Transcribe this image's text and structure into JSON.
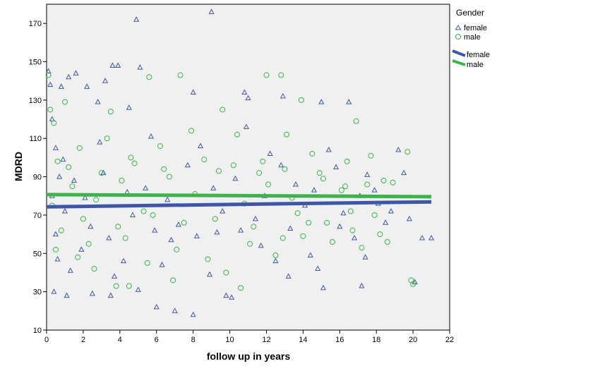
{
  "chart_data": {
    "type": "scatter",
    "xlabel": "follow up in years",
    "ylabel": "MDRD",
    "xlim": [
      0,
      22
    ],
    "ylim": [
      10,
      180
    ],
    "xticks": [
      0,
      2,
      4,
      6,
      8,
      10,
      12,
      14,
      16,
      18,
      20,
      22
    ],
    "yticks": [
      10,
      30,
      50,
      70,
      90,
      110,
      130,
      150,
      170
    ],
    "grid": false,
    "legend_title": "Gender",
    "legend_placement": "right",
    "colors": {
      "female": "#3f56a6",
      "male": "#3cb44b",
      "plot_bg": "#f0f0f0"
    },
    "series": [
      {
        "name": "female",
        "marker": "triangle",
        "points": [
          [
            0.1,
            145
          ],
          [
            0.2,
            138
          ],
          [
            0.3,
            120
          ],
          [
            0.5,
            105
          ],
          [
            0.8,
            137
          ],
          [
            1.2,
            142
          ],
          [
            1.6,
            144
          ],
          [
            2.2,
            137
          ],
          [
            2.8,
            129
          ],
          [
            3.2,
            140
          ],
          [
            3.6,
            148
          ],
          [
            3.9,
            148
          ],
          [
            4.5,
            126
          ],
          [
            4.9,
            172
          ],
          [
            5.1,
            147
          ],
          [
            8.0,
            134
          ],
          [
            9.0,
            176
          ],
          [
            10.8,
            134
          ],
          [
            11.0,
            131
          ],
          [
            12.9,
            132
          ],
          [
            15.0,
            129
          ],
          [
            16.5,
            129
          ],
          [
            19.2,
            104
          ],
          [
            0.4,
            30
          ],
          [
            1.1,
            28
          ],
          [
            2.5,
            29
          ],
          [
            3.5,
            28
          ],
          [
            5.0,
            31
          ],
          [
            6.0,
            22
          ],
          [
            7.0,
            20
          ],
          [
            8.0,
            18
          ],
          [
            9.8,
            28
          ],
          [
            10.1,
            27
          ],
          [
            13.2,
            38
          ],
          [
            15.1,
            32
          ],
          [
            17.2,
            33
          ],
          [
            20.1,
            35
          ],
          [
            0.6,
            47
          ],
          [
            1.9,
            52
          ],
          [
            4.2,
            46
          ],
          [
            6.8,
            57
          ],
          [
            9.3,
            61
          ],
          [
            11.7,
            54
          ],
          [
            14.4,
            49
          ],
          [
            16.8,
            58
          ],
          [
            18.5,
            66
          ],
          [
            20.5,
            58
          ],
          [
            1.5,
            88
          ],
          [
            3.1,
            92
          ],
          [
            5.4,
            84
          ],
          [
            7.7,
            96
          ],
          [
            10.3,
            89
          ],
          [
            12.2,
            102
          ],
          [
            13.6,
            86
          ],
          [
            15.8,
            95
          ],
          [
            17.5,
            91
          ],
          [
            19.5,
            92
          ],
          [
            2.4,
            64
          ],
          [
            4.7,
            70
          ],
          [
            7.2,
            65
          ],
          [
            9.6,
            72
          ],
          [
            11.4,
            68
          ],
          [
            14.1,
            75
          ],
          [
            16.2,
            71
          ],
          [
            18.1,
            76
          ],
          [
            19.8,
            68
          ],
          [
            0.9,
            99
          ],
          [
            2.9,
            108
          ],
          [
            5.7,
            111
          ],
          [
            8.4,
            106
          ],
          [
            10.9,
            116
          ],
          [
            12.8,
            96
          ],
          [
            15.4,
            104
          ],
          [
            17.9,
            83
          ],
          [
            1.3,
            41
          ],
          [
            3.7,
            38
          ],
          [
            6.3,
            44
          ],
          [
            8.9,
            39
          ],
          [
            12.5,
            46
          ],
          [
            14.8,
            42
          ],
          [
            17.4,
            48
          ],
          [
            0.3,
            80
          ],
          [
            0.5,
            60
          ],
          [
            0.7,
            90
          ],
          [
            1.0,
            72
          ],
          [
            2.1,
            79
          ],
          [
            3.4,
            58
          ],
          [
            4.4,
            82
          ],
          [
            5.9,
            62
          ],
          [
            6.6,
            78
          ],
          [
            8.2,
            59
          ],
          [
            9.1,
            84
          ],
          [
            10.6,
            62
          ],
          [
            11.9,
            80
          ],
          [
            13.3,
            63
          ],
          [
            14.6,
            83
          ],
          [
            16.0,
            64
          ],
          [
            17.1,
            80
          ],
          [
            18.8,
            72
          ],
          [
            21.0,
            58
          ]
        ]
      },
      {
        "name": "male",
        "marker": "circle",
        "points": [
          [
            0.1,
            143
          ],
          [
            0.2,
            125
          ],
          [
            0.4,
            118
          ],
          [
            1.0,
            129
          ],
          [
            3.5,
            124
          ],
          [
            5.6,
            142
          ],
          [
            7.3,
            143
          ],
          [
            9.6,
            125
          ],
          [
            12.0,
            143
          ],
          [
            12.8,
            143
          ],
          [
            13.9,
            130
          ],
          [
            16.9,
            119
          ],
          [
            0.6,
            98
          ],
          [
            1.8,
            105
          ],
          [
            3.3,
            110
          ],
          [
            4.6,
            100
          ],
          [
            6.2,
            106
          ],
          [
            7.9,
            114
          ],
          [
            10.4,
            112
          ],
          [
            11.8,
            98
          ],
          [
            13.1,
            112
          ],
          [
            14.5,
            102
          ],
          [
            16.4,
            98
          ],
          [
            17.7,
            101
          ],
          [
            19.7,
            103
          ],
          [
            0.8,
            62
          ],
          [
            2.3,
            55
          ],
          [
            3.8,
            33
          ],
          [
            4.5,
            33
          ],
          [
            6.9,
            36
          ],
          [
            9.8,
            40
          ],
          [
            10.6,
            32
          ],
          [
            12.5,
            49
          ],
          [
            14.0,
            59
          ],
          [
            15.6,
            56
          ],
          [
            17.2,
            53
          ],
          [
            18.6,
            56
          ],
          [
            19.9,
            36
          ],
          [
            20.0,
            34
          ],
          [
            1.4,
            85
          ],
          [
            2.7,
            78
          ],
          [
            4.1,
            88
          ],
          [
            5.3,
            72
          ],
          [
            6.7,
            90
          ],
          [
            8.1,
            81
          ],
          [
            9.4,
            93
          ],
          [
            10.8,
            76
          ],
          [
            12.1,
            86
          ],
          [
            13.4,
            79
          ],
          [
            14.9,
            92
          ],
          [
            16.1,
            83
          ],
          [
            17.5,
            86
          ],
          [
            18.4,
            88
          ],
          [
            18.9,
            87
          ],
          [
            2.0,
            68
          ],
          [
            3.9,
            64
          ],
          [
            5.8,
            70
          ],
          [
            7.5,
            66
          ],
          [
            9.2,
            68
          ],
          [
            11.3,
            64
          ],
          [
            13.7,
            71
          ],
          [
            15.3,
            66
          ],
          [
            16.7,
            62
          ],
          [
            18.2,
            60
          ],
          [
            1.2,
            95
          ],
          [
            3.0,
            92
          ],
          [
            4.8,
            97
          ],
          [
            6.4,
            94
          ],
          [
            8.6,
            99
          ],
          [
            10.2,
            96
          ],
          [
            11.6,
            92
          ],
          [
            13.0,
            94
          ],
          [
            15.1,
            89
          ],
          [
            16.3,
            85
          ],
          [
            0.3,
            75
          ],
          [
            0.5,
            52
          ],
          [
            1.7,
            48
          ],
          [
            2.6,
            42
          ],
          [
            4.3,
            58
          ],
          [
            5.5,
            45
          ],
          [
            7.1,
            52
          ],
          [
            8.8,
            47
          ],
          [
            11.1,
            55
          ],
          [
            12.9,
            58
          ],
          [
            14.3,
            66
          ],
          [
            16.6,
            72
          ],
          [
            17.9,
            70
          ]
        ]
      }
    ],
    "fit_lines": [
      {
        "name": "female",
        "x": [
          0,
          21
        ],
        "y": [
          74.3,
          76.9
        ]
      },
      {
        "name": "male",
        "x": [
          0,
          21
        ],
        "y": [
          80.7,
          79.6
        ]
      }
    ]
  }
}
